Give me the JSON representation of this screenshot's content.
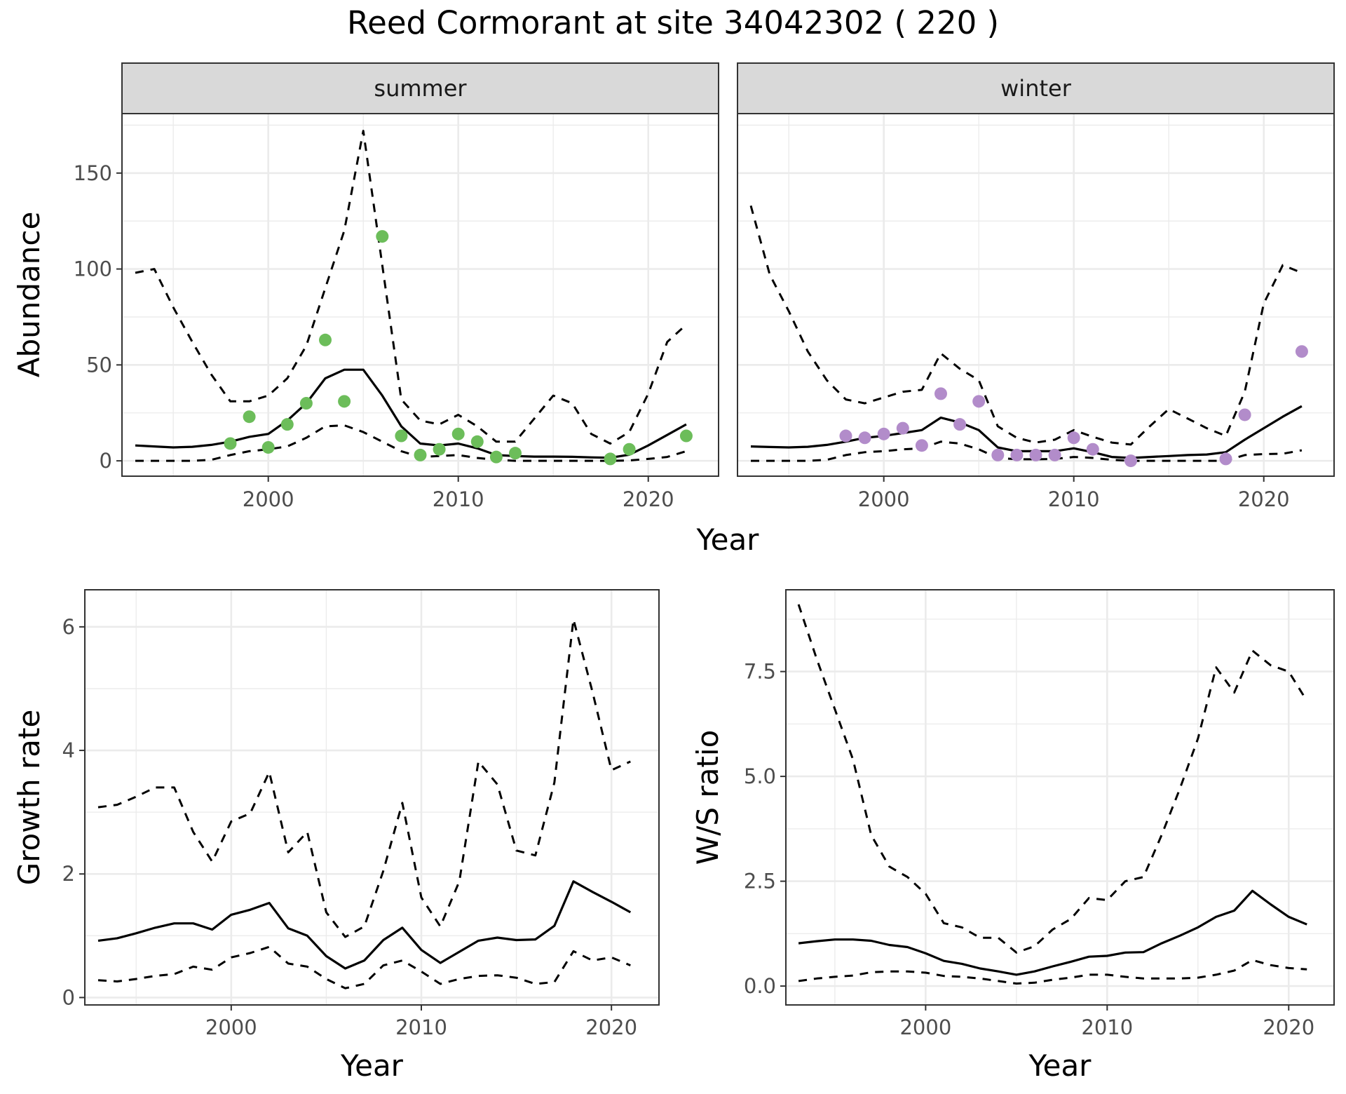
{
  "title": "Reed Cormorant at site 34042302 ( 220 )",
  "colors": {
    "summer_points": "#6cbd5a",
    "winter_points": "#b28cca",
    "lines": "#000000",
    "grid": "#ebebeb",
    "strip_bg": "#d9d9d9",
    "panel_border": "#333333"
  },
  "chart_data": [
    {
      "id": "abundance",
      "type": "line",
      "facets": [
        "summer",
        "winter"
      ],
      "xlabel": "Year",
      "ylabel": "Abundance",
      "xlim": [
        1992.3,
        2023.7
      ],
      "ylim": [
        -8,
        181
      ],
      "xticks": [
        2000,
        2010,
        2020
      ],
      "yticks": [
        0,
        50,
        100,
        150
      ],
      "panels": [
        {
          "facet": "summer",
          "point_color": "summer_points",
          "x": [
            1993,
            1994,
            1995,
            1996,
            1997,
            1998,
            1999,
            2000,
            2001,
            2002,
            2003,
            2004,
            2005,
            2006,
            2007,
            2008,
            2009,
            2010,
            2011,
            2012,
            2013,
            2014,
            2015,
            2016,
            2017,
            2018,
            2019,
            2020,
            2021,
            2022
          ],
          "estimate": [
            8,
            7.5,
            7,
            7.3,
            8.3,
            10,
            12.5,
            14,
            21,
            30,
            43,
            47.5,
            47.5,
            34,
            18,
            9,
            8,
            9,
            6.5,
            3,
            2.5,
            2.2,
            2.2,
            2.1,
            1.8,
            1.6,
            3.2,
            8,
            13.5,
            19
          ],
          "upper": [
            98,
            100,
            80,
            62,
            45,
            31,
            31,
            34,
            43,
            60,
            90,
            120,
            172,
            102,
            32,
            21,
            19,
            24,
            18,
            10,
            10,
            22,
            34,
            30,
            14,
            9,
            15,
            35,
            62,
            71
          ],
          "lower": [
            0,
            0,
            0,
            0,
            0.5,
            3,
            5,
            6,
            7.5,
            12,
            18,
            18.5,
            15,
            10,
            5,
            2,
            2.5,
            3,
            1.5,
            0.5,
            0,
            0,
            0,
            0,
            0,
            0,
            0.2,
            1,
            2,
            5
          ],
          "observed_x": [
            1998,
            1999,
            2000,
            2001,
            2002,
            2003,
            2004,
            2006,
            2007,
            2008,
            2009,
            2010,
            2011,
            2012,
            2013,
            2018,
            2019,
            2022
          ],
          "observed_y": [
            9,
            23,
            7,
            19,
            30,
            63,
            31,
            117,
            13,
            3,
            6,
            14,
            10,
            2,
            4,
            1,
            6,
            13
          ]
        },
        {
          "facet": "winter",
          "point_color": "winter_points",
          "x": [
            1993,
            1994,
            1995,
            1996,
            1997,
            1998,
            1999,
            2000,
            2001,
            2002,
            2003,
            2004,
            2005,
            2006,
            2007,
            2008,
            2009,
            2010,
            2011,
            2012,
            2013,
            2014,
            2015,
            2016,
            2017,
            2018,
            2019,
            2020,
            2021,
            2022
          ],
          "estimate": [
            7.5,
            7.2,
            7,
            7.3,
            8.3,
            10,
            12,
            13,
            14.5,
            16,
            22.5,
            20,
            16,
            7,
            5,
            5,
            5,
            6.5,
            4.5,
            2,
            1.5,
            2,
            2.5,
            3,
            3.3,
            4.5,
            11,
            17,
            23,
            28.5
          ],
          "upper": [
            133,
            97,
            78,
            57,
            42,
            32,
            30,
            33,
            36,
            37,
            56,
            48,
            42,
            18,
            12,
            9.5,
            11,
            16,
            12.5,
            9.5,
            8.5,
            18,
            27,
            22,
            17,
            13,
            36,
            82,
            102,
            98
          ],
          "lower": [
            0,
            0,
            0,
            0,
            0.5,
            3,
            4.5,
            5,
            6,
            6.5,
            10,
            9,
            6,
            1.5,
            0.8,
            0.8,
            1,
            2,
            1.5,
            0.5,
            0,
            0,
            0,
            0,
            0,
            0,
            3,
            3.5,
            3.7,
            5.5
          ],
          "observed_x": [
            1998,
            1999,
            2000,
            2001,
            2002,
            2003,
            2004,
            2005,
            2006,
            2007,
            2008,
            2009,
            2010,
            2011,
            2013,
            2018,
            2019,
            2022
          ],
          "observed_y": [
            13,
            12,
            14,
            17,
            8,
            35,
            19,
            31,
            3,
            3,
            3,
            3,
            12,
            6,
            0,
            1,
            24,
            57
          ]
        }
      ]
    },
    {
      "id": "growth",
      "type": "line",
      "xlabel": "Year",
      "ylabel": "Growth rate",
      "xlim": [
        1992.3,
        2022.5
      ],
      "ylim": [
        -0.12,
        6.6
      ],
      "xticks": [
        2000,
        2010,
        2020
      ],
      "yticks": [
        0,
        2,
        4,
        6
      ],
      "x": [
        1993,
        1994,
        1995,
        1996,
        1997,
        1998,
        1999,
        2000,
        2001,
        2002,
        2003,
        2004,
        2005,
        2006,
        2007,
        2008,
        2009,
        2010,
        2011,
        2012,
        2013,
        2014,
        2015,
        2016,
        2017,
        2018,
        2019,
        2020,
        2021
      ],
      "estimate": [
        0.92,
        0.96,
        1.04,
        1.13,
        1.2,
        1.2,
        1.1,
        1.34,
        1.42,
        1.53,
        1.12,
        1.0,
        0.67,
        0.47,
        0.6,
        0.93,
        1.13,
        0.77,
        0.56,
        0.74,
        0.92,
        0.97,
        0.93,
        0.94,
        1.16,
        1.88,
        1.71,
        1.55,
        1.38
      ],
      "upper": [
        3.08,
        3.12,
        3.25,
        3.4,
        3.4,
        2.68,
        2.2,
        2.85,
        2.98,
        3.65,
        2.35,
        2.68,
        1.38,
        0.98,
        1.15,
        2.05,
        3.15,
        1.62,
        1.15,
        1.88,
        3.82,
        3.45,
        2.38,
        2.3,
        3.48,
        6.12,
        4.95,
        3.68,
        3.82
      ],
      "lower": [
        0.28,
        0.26,
        0.3,
        0.35,
        0.38,
        0.5,
        0.45,
        0.65,
        0.72,
        0.82,
        0.55,
        0.5,
        0.3,
        0.15,
        0.22,
        0.52,
        0.6,
        0.42,
        0.22,
        0.3,
        0.35,
        0.36,
        0.32,
        0.22,
        0.25,
        0.75,
        0.6,
        0.65,
        0.52
      ]
    },
    {
      "id": "ws_ratio",
      "type": "line",
      "xlabel": "Year",
      "ylabel": "W/S ratio",
      "xlim": [
        1992.3,
        2022.5
      ],
      "ylim": [
        -0.45,
        9.45
      ],
      "xticks": [
        2000,
        2010,
        2020
      ],
      "yticks": [
        0.0,
        2.5,
        5.0,
        7.5
      ],
      "ytick_labels": [
        "0.0",
        "2.5",
        "5.0",
        "7.5"
      ],
      "x": [
        1993,
        1994,
        1995,
        1996,
        1997,
        1998,
        1999,
        2000,
        2001,
        2002,
        2003,
        2004,
        2005,
        2006,
        2007,
        2008,
        2009,
        2010,
        2011,
        2012,
        2013,
        2014,
        2015,
        2016,
        2017,
        2018,
        2019,
        2020,
        2021
      ],
      "estimate": [
        1.02,
        1.07,
        1.11,
        1.11,
        1.08,
        0.98,
        0.93,
        0.78,
        0.6,
        0.53,
        0.42,
        0.35,
        0.27,
        0.35,
        0.47,
        0.58,
        0.7,
        0.72,
        0.8,
        0.81,
        1.02,
        1.2,
        1.4,
        1.65,
        1.8,
        2.27,
        1.95,
        1.65,
        1.47
      ],
      "upper": [
        9.1,
        7.8,
        6.6,
        5.4,
        3.6,
        2.85,
        2.6,
        2.2,
        1.5,
        1.4,
        1.15,
        1.15,
        0.8,
        0.95,
        1.35,
        1.6,
        2.1,
        2.05,
        2.5,
        2.6,
        3.6,
        4.7,
        5.9,
        7.6,
        7.0,
        8.0,
        7.65,
        7.5,
        6.8
      ],
      "lower": [
        0.12,
        0.18,
        0.22,
        0.25,
        0.33,
        0.35,
        0.35,
        0.32,
        0.24,
        0.22,
        0.18,
        0.12,
        0.06,
        0.08,
        0.15,
        0.2,
        0.27,
        0.27,
        0.22,
        0.18,
        0.18,
        0.18,
        0.2,
        0.27,
        0.37,
        0.62,
        0.5,
        0.43,
        0.4
      ]
    }
  ]
}
